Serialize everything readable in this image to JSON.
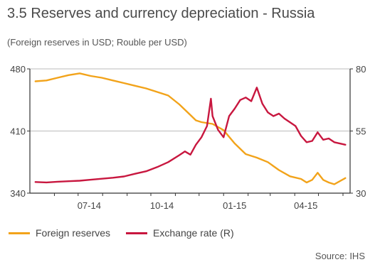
{
  "colors": {
    "reserves": "#f2a31a",
    "exchange": "#c8173f",
    "grid": "#bbbbbb",
    "axis": "#333333"
  },
  "chart_data": {
    "type": "line",
    "title": "3.5 Reserves and currency depreciation - Russia",
    "subtitle": "(Foreign reserves in USD; Rouble per USD)",
    "source": "Source: IHS",
    "x_ticks": [
      "07-14",
      "10-14",
      "01-15",
      "04-15"
    ],
    "y_left": {
      "ticks": [
        "340",
        "410",
        "480"
      ],
      "range": [
        340,
        480
      ]
    },
    "y_right": {
      "ticks": [
        "30",
        "55",
        "80"
      ],
      "range": [
        30,
        80
      ]
    },
    "grid": "horizontal",
    "legend_position": "bottom",
    "series": [
      {
        "name": "Foreign reserves",
        "axis": "left",
        "x": [
          "2014-05-08",
          "2014-05-22",
          "2014-06-05",
          "2014-06-19",
          "2014-07-03",
          "2014-07-17",
          "2014-07-31",
          "2014-08-14",
          "2014-08-28",
          "2014-09-11",
          "2014-09-25",
          "2014-10-09",
          "2014-10-23",
          "2014-11-06",
          "2014-11-20",
          "2014-11-27",
          "2014-12-04",
          "2014-12-18",
          "2015-01-01",
          "2015-01-15",
          "2015-01-29",
          "2015-02-12",
          "2015-02-26",
          "2015-03-12",
          "2015-03-26",
          "2015-04-09",
          "2015-04-16",
          "2015-04-23",
          "2015-04-30",
          "2015-05-07",
          "2015-05-14",
          "2015-05-21",
          "2015-06-04"
        ],
        "values": [
          466,
          467,
          470,
          473,
          475,
          472,
          470,
          467,
          464,
          461,
          458,
          454,
          450,
          440,
          428,
          422,
          420,
          418,
          411,
          396,
          384,
          380,
          375,
          366,
          359,
          356,
          352,
          355,
          363,
          355,
          352,
          350,
          357
        ]
      },
      {
        "name": "Exchange rate (R)",
        "axis": "right",
        "x": [
          "2014-05-08",
          "2014-05-22",
          "2014-06-05",
          "2014-06-19",
          "2014-07-03",
          "2014-07-17",
          "2014-07-31",
          "2014-08-14",
          "2014-08-28",
          "2014-09-11",
          "2014-09-25",
          "2014-10-09",
          "2014-10-23",
          "2014-11-06",
          "2014-11-13",
          "2014-11-20",
          "2014-11-27",
          "2014-12-04",
          "2014-12-11",
          "2014-12-16",
          "2014-12-18",
          "2014-12-25",
          "2015-01-01",
          "2015-01-08",
          "2015-01-15",
          "2015-01-22",
          "2015-01-29",
          "2015-02-05",
          "2015-02-12",
          "2015-02-19",
          "2015-02-26",
          "2015-03-05",
          "2015-03-12",
          "2015-03-19",
          "2015-03-26",
          "2015-04-02",
          "2015-04-09",
          "2015-04-16",
          "2015-04-23",
          "2015-04-30",
          "2015-05-07",
          "2015-05-14",
          "2015-05-21",
          "2015-06-04"
        ],
        "values": [
          34.5,
          34.3,
          34.6,
          34.8,
          35.0,
          35.4,
          35.8,
          36.2,
          36.7,
          37.8,
          38.8,
          40.5,
          42.5,
          45.3,
          46.8,
          45.5,
          49.5,
          52.5,
          57.0,
          68.0,
          61.0,
          55.5,
          52.5,
          61.0,
          64.0,
          67.5,
          68.5,
          67.0,
          72.5,
          66.0,
          62.5,
          61.0,
          62.0,
          60.0,
          58.5,
          57.0,
          53.0,
          50.5,
          51.0,
          54.5,
          51.5,
          52.0,
          50.5,
          49.5
        ]
      }
    ]
  }
}
